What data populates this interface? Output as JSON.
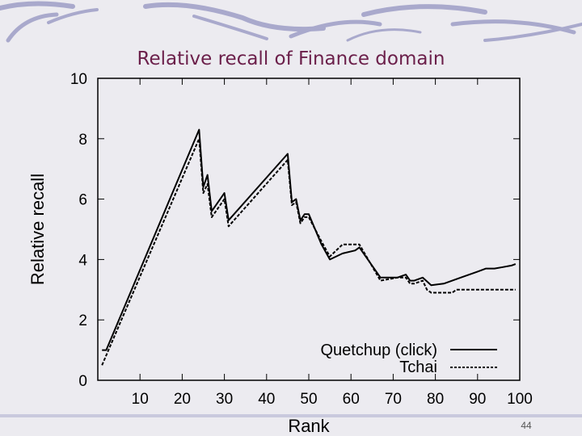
{
  "slide": {
    "title": "Relative recall of Finance domain",
    "page_number": "44"
  },
  "colors": {
    "background": "#ecebf0",
    "title": "#6b1f4a",
    "swoosh": "#a9a9cc"
  },
  "chart_data": {
    "type": "line",
    "title": "",
    "xlabel": "Rank",
    "ylabel": "Relative recall",
    "xlim": [
      0,
      100
    ],
    "ylim": [
      0,
      10
    ],
    "xticks": [
      10,
      20,
      30,
      40,
      50,
      60,
      70,
      80,
      90,
      100
    ],
    "yticks": [
      0,
      2,
      4,
      6,
      8,
      10
    ],
    "grid": false,
    "legend": "bottom-right",
    "series": [
      {
        "name": "Quetchup (click)",
        "style": "solid",
        "x": [
          1,
          2,
          24,
          25,
          26,
          27,
          30,
          31,
          45,
          46,
          47,
          48,
          49,
          50,
          53,
          55,
          58,
          61,
          62,
          67,
          71,
          73,
          74,
          75,
          77,
          79,
          82,
          86,
          90,
          92,
          94,
          96,
          98,
          99
        ],
        "y": [
          1.0,
          1.0,
          8.3,
          6.4,
          6.8,
          5.6,
          6.2,
          5.3,
          7.5,
          5.9,
          6.0,
          5.3,
          5.5,
          5.5,
          4.5,
          4.0,
          4.2,
          4.3,
          4.4,
          3.4,
          3.4,
          3.5,
          3.3,
          3.3,
          3.4,
          3.15,
          3.2,
          3.4,
          3.6,
          3.7,
          3.7,
          3.75,
          3.8,
          3.85
        ]
      },
      {
        "name": "Tchai",
        "style": "dashed",
        "x": [
          1,
          24,
          25,
          26,
          27,
          30,
          31,
          45,
          46,
          47,
          48,
          49,
          50,
          53,
          55,
          58,
          62,
          67,
          71,
          73,
          74,
          75,
          77,
          78,
          79,
          82,
          84,
          85,
          99
        ],
        "y": [
          0.5,
          8.0,
          6.2,
          6.5,
          5.4,
          6.0,
          5.1,
          7.3,
          5.8,
          5.9,
          5.2,
          5.4,
          5.4,
          4.6,
          4.1,
          4.5,
          4.5,
          3.3,
          3.4,
          3.4,
          3.2,
          3.2,
          3.3,
          3.0,
          2.9,
          2.9,
          2.9,
          3.0,
          3.0
        ]
      }
    ]
  }
}
